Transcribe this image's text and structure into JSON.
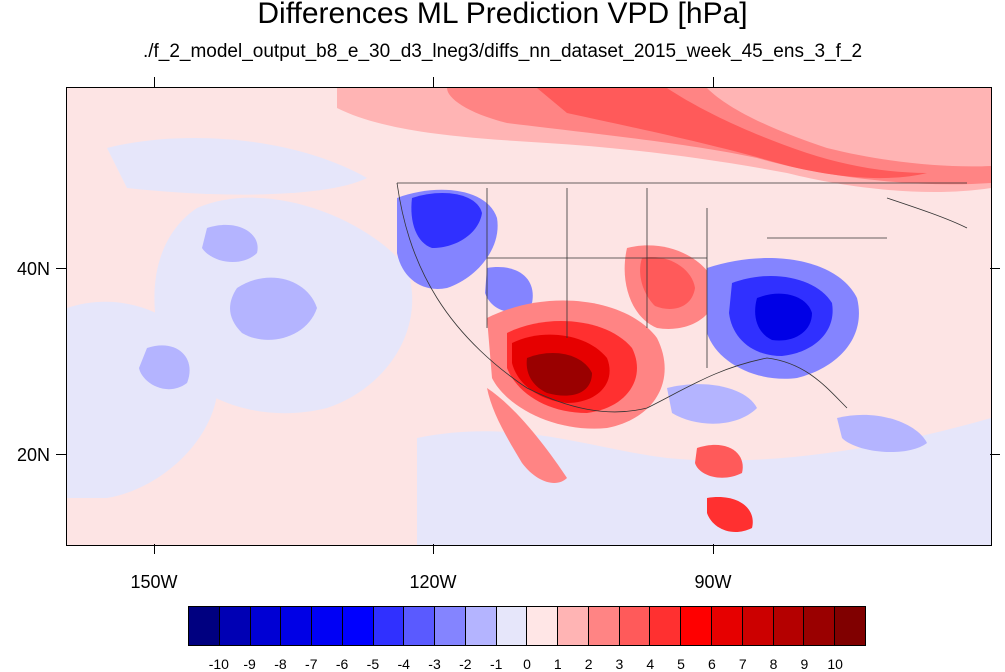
{
  "title": "Differences ML Prediction VPD [hPa]",
  "subtitle": "./f_2_model_output_b8_e_30_d3_lneg3/diffs_nn_dataset_2015_week_45_ens_3_f_2",
  "map": {
    "lat_labels": [
      "40N",
      "20N"
    ],
    "lon_labels": [
      "150W",
      "120W",
      "90W"
    ],
    "background_color": "#fde4e4"
  },
  "colorbar": {
    "colors": [
      "#000080",
      "#0000b4",
      "#0000d4",
      "#0000e6",
      "#0000f5",
      "#0000ff",
      "#3030ff",
      "#5a5aff",
      "#8484ff",
      "#b4b4ff",
      "#e6e6fa",
      "#ffe6e6",
      "#ffb4b4",
      "#ff8484",
      "#ff5a5a",
      "#ff3030",
      "#ff0000",
      "#e60000",
      "#cc0000",
      "#b40000",
      "#9a0000",
      "#800000"
    ],
    "labels": [
      "-10",
      "-9",
      "-8",
      "-7",
      "-6",
      "-5",
      "-4",
      "-3",
      "-2",
      "-1",
      "0",
      "1",
      "2",
      "3",
      "4",
      "5",
      "6",
      "7",
      "8",
      "9",
      "10"
    ]
  }
}
